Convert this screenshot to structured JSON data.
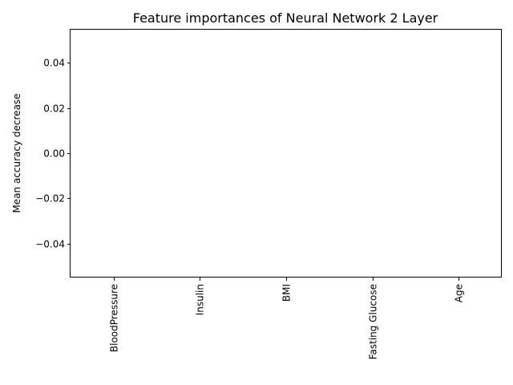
{
  "chart_data": {
    "type": "bar",
    "title": "Feature importances of Neural Network 2 Layer",
    "xlabel": "",
    "ylabel": "Mean accuracy decrease",
    "categories": [
      "BloodPressure",
      "Insulin",
      "BMI",
      "Fasting Glucose",
      "Age"
    ],
    "values": [
      0,
      0,
      0,
      0,
      0
    ],
    "yticks": [
      -0.04,
      -0.02,
      0.0,
      0.02,
      0.04
    ],
    "ytick_labels": [
      "−0.04",
      "−0.02",
      "0.00",
      "0.02",
      "0.04"
    ],
    "ylim": [
      -0.055,
      0.055
    ],
    "grid": false,
    "legend": "none",
    "bar_color": "#1f77b4"
  }
}
